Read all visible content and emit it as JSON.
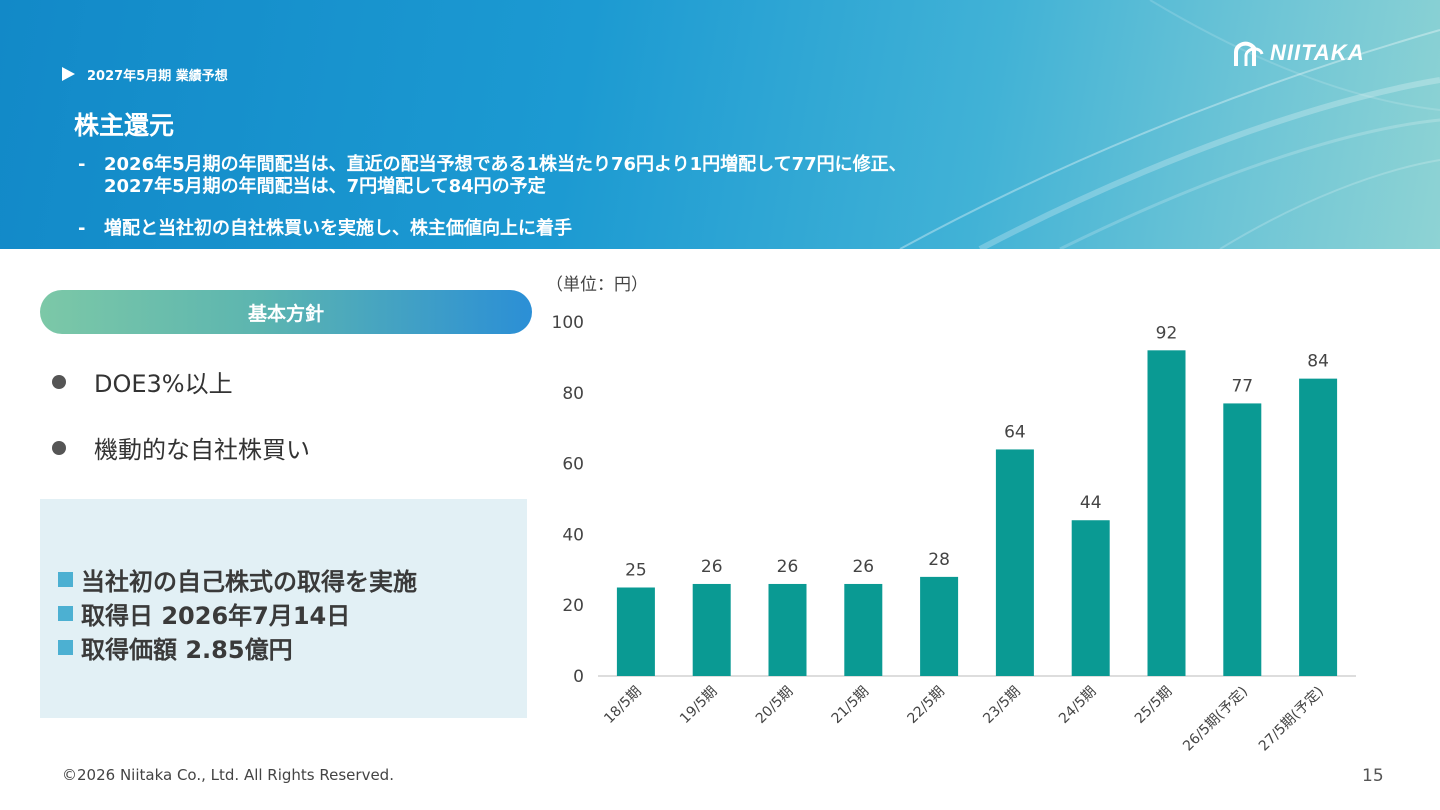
{
  "header": {
    "breadcrumb": "2027年5月期 業績予想",
    "logo_text": "NIITAKA",
    "title": "株主還元",
    "bullets": [
      "2026年5月期の年間配当は、直近の配当予想である1株当たり76円より1円増配して77円に修正、\n2027年5月期の年間配当は、7円増配して84円の予定",
      "増配と当社初の自社株買いを実施し、株主価値向上に着手"
    ],
    "bullet_marker": "-"
  },
  "policy": {
    "heading": "基本方針",
    "items": [
      "DOE3%以上",
      "機動的な自社株買い"
    ]
  },
  "info": {
    "lines": [
      "当社初の自己株式の取得を実施",
      "取得日 2026年7月14日",
      "取得価額 2.85億円"
    ]
  },
  "colors": {
    "bar": "#0a9a93",
    "accent": "#4cb0d2",
    "header_start": "#1289c8",
    "header_end": "#8ed3d4"
  },
  "chart_data": {
    "type": "bar",
    "unit_label": "（単位：円）",
    "categories": [
      "18/5期",
      "19/5期",
      "20/5期",
      "21/5期",
      "22/5期",
      "23/5期",
      "24/5期",
      "25/5期",
      "26/5期(予定)",
      "27/5期(予定)"
    ],
    "values": [
      25,
      26,
      26,
      26,
      28,
      64,
      44,
      92,
      77,
      84
    ],
    "ylim": [
      0,
      100
    ],
    "yticks": [
      0,
      20,
      40,
      60,
      80,
      100
    ],
    "title": "",
    "xlabel": "",
    "ylabel": "",
    "data_labels": true,
    "grid": false
  },
  "footer": {
    "copyright": "©2026 Niitaka Co., Ltd. All Rights Reserved.",
    "page_number": "15"
  }
}
